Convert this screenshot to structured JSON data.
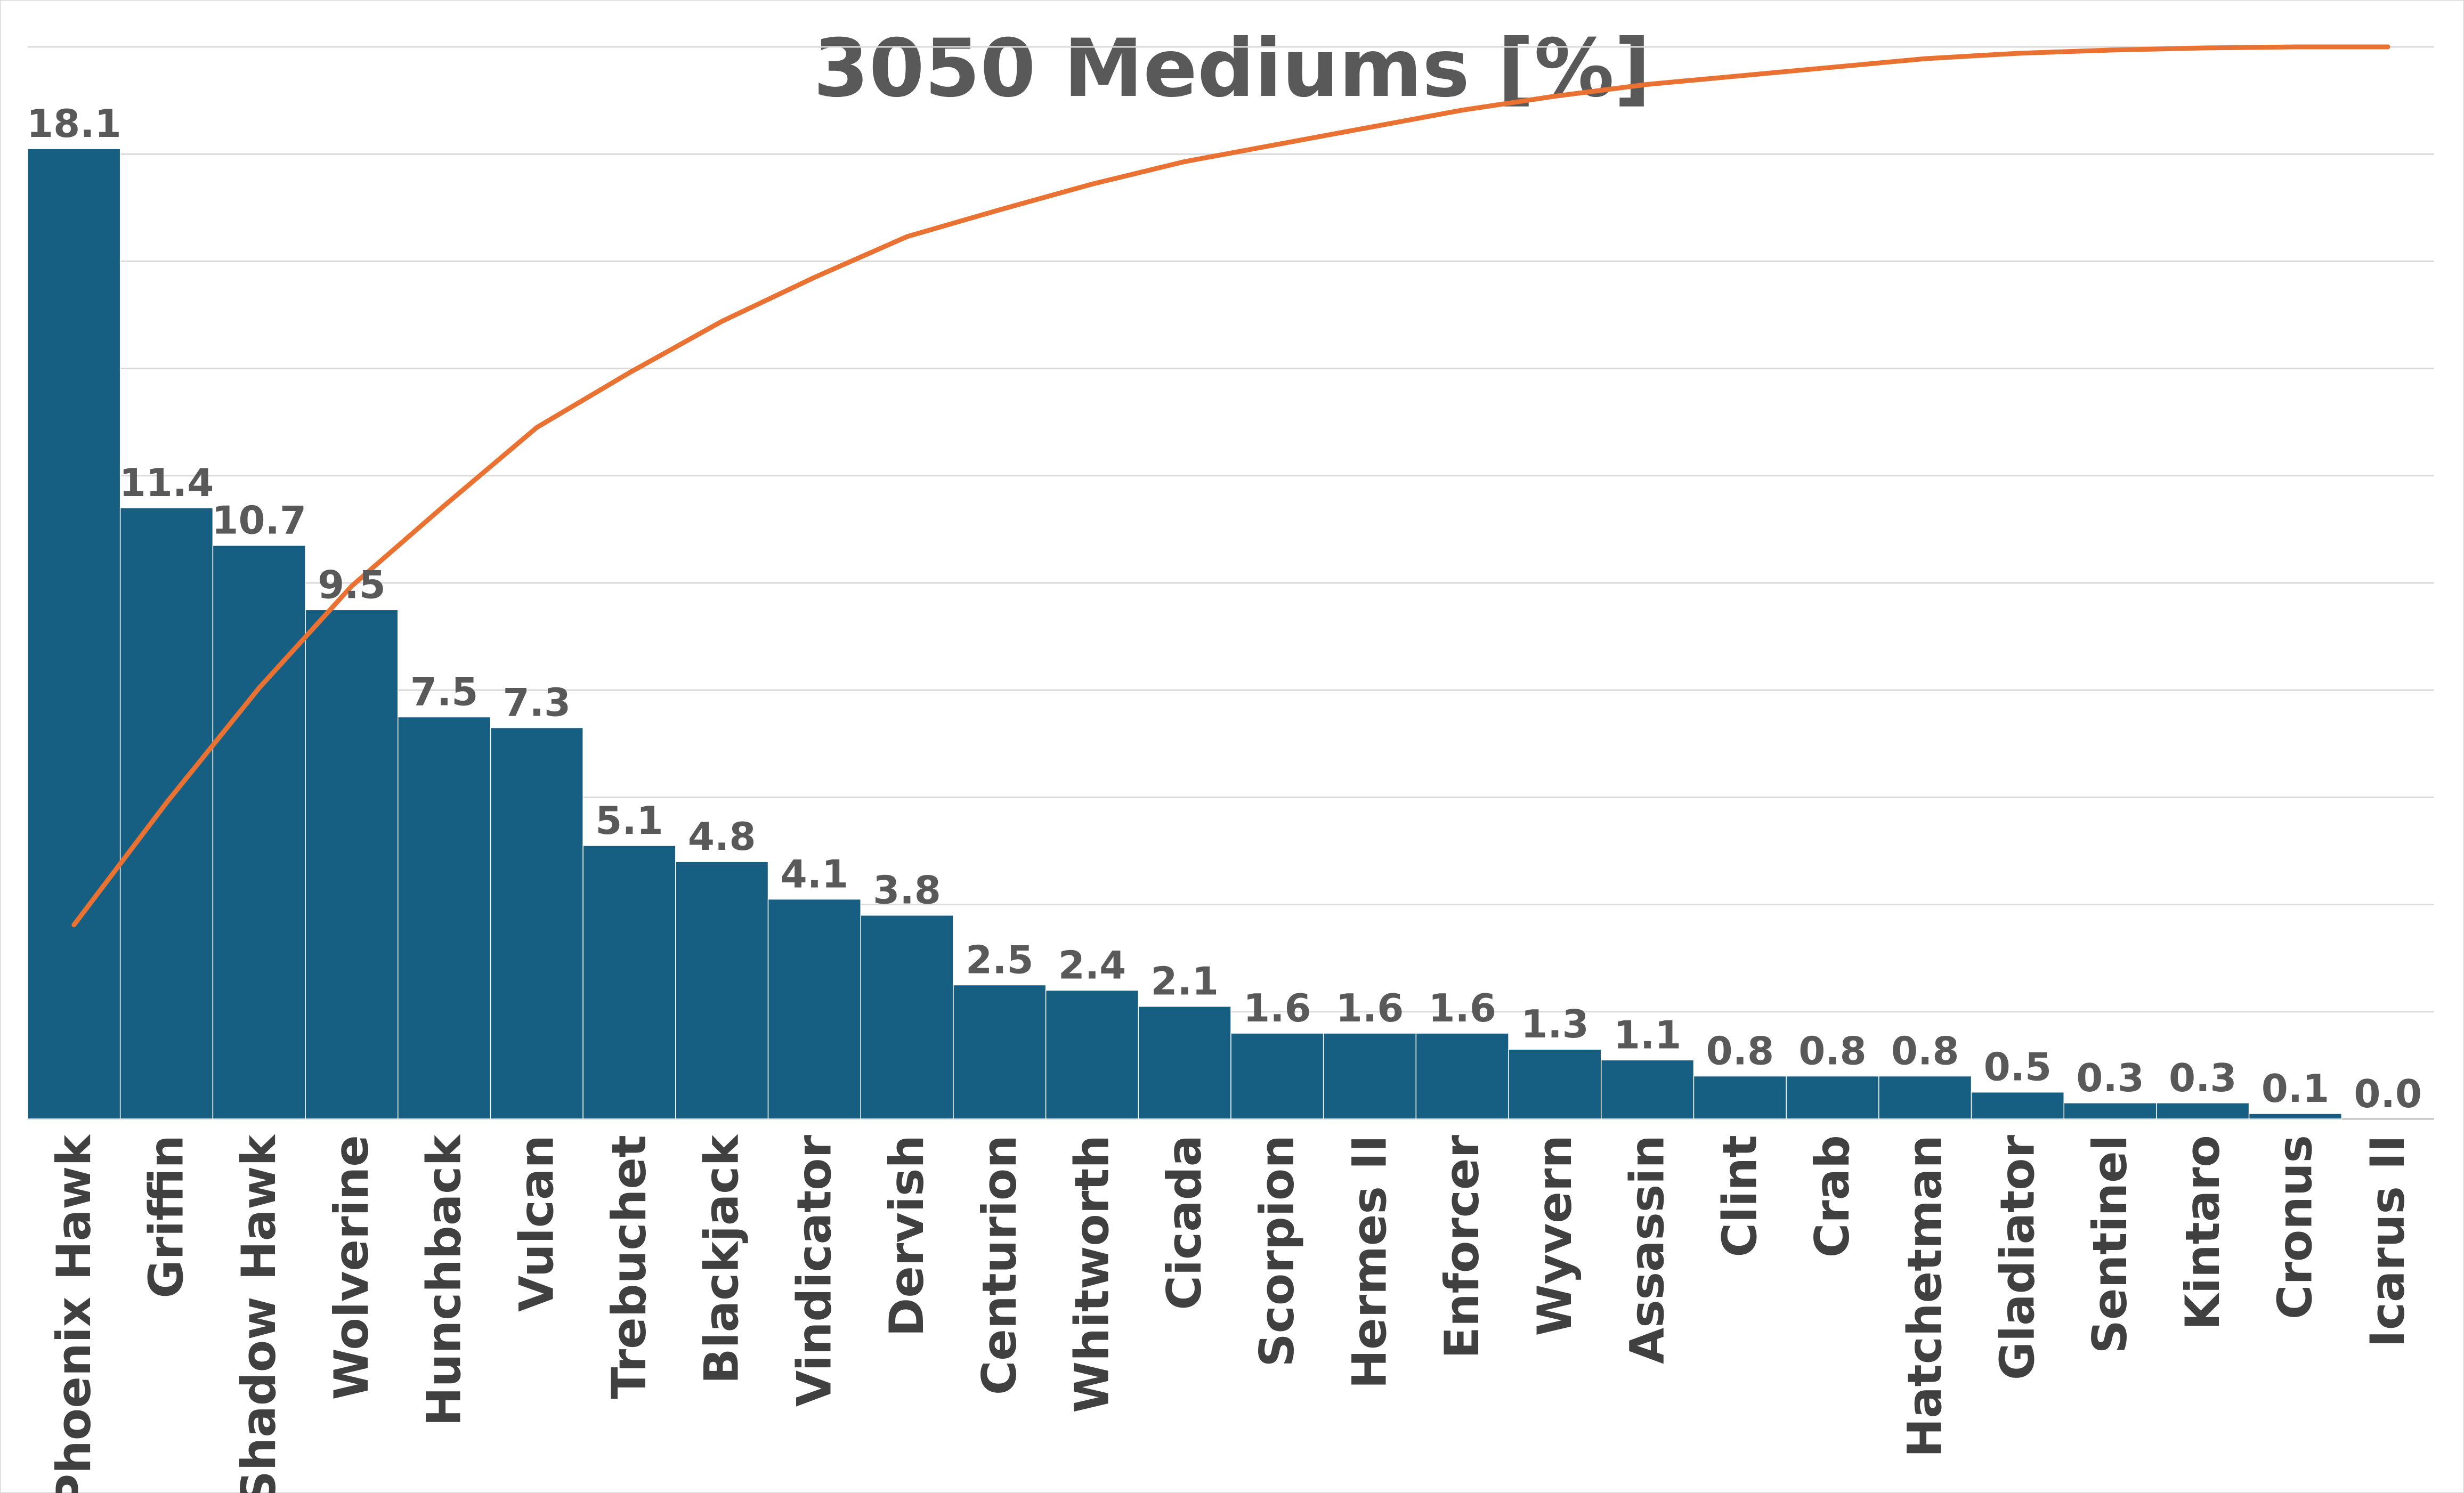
{
  "chart_data": {
    "type": "bar",
    "title": "3050 Mediums [%]",
    "xlabel": "",
    "ylabel": "",
    "ylim": [
      0,
      20
    ],
    "grid": true,
    "legend": "none",
    "categories": [
      "Phoenix Hawk",
      "Griffin",
      "Shadow Hawk",
      "Wolverine",
      "Hunchback",
      "Vulcan",
      "Trebuchet",
      "Blackjack",
      "Vindicator",
      "Dervish",
      "Centurion",
      "Whitworth",
      "Cicada",
      "Scorpion",
      "Hermes II",
      "Enforcer",
      "Wyvern",
      "Assassin",
      "Clint",
      "Crab",
      "Hatchetman",
      "Gladiator",
      "Sentinel",
      "Kintaro",
      "Cronus",
      "Icarus II"
    ],
    "series": [
      {
        "type": "bar",
        "values": [
          18.1,
          11.4,
          10.7,
          9.5,
          7.5,
          7.3,
          5.1,
          4.8,
          4.1,
          3.8,
          2.5,
          2.4,
          2.1,
          1.6,
          1.6,
          1.6,
          1.3,
          1.1,
          0.8,
          0.8,
          0.8,
          0.5,
          0.3,
          0.3,
          0.1,
          0.0
        ],
        "data_labels": [
          "18.1",
          "11.4",
          "10.7",
          "9.5",
          "7.5",
          "7.3",
          "5.1",
          "4.8",
          "4.1",
          "3.8",
          "2.5",
          "2.4",
          "2.1",
          "1.6",
          "1.6",
          "1.6",
          "1.3",
          "1.1",
          "0.8",
          "0.8",
          "0.8",
          "0.5",
          "0.3",
          "0.3",
          "0.1",
          "0.0"
        ]
      },
      {
        "type": "line",
        "cumulative_percent": [
          18.1,
          29.5,
          40.2,
          49.7,
          57.2,
          64.5,
          69.6,
          74.4,
          78.5,
          82.3,
          84.8,
          87.2,
          89.3,
          90.9,
          92.5,
          94.1,
          95.4,
          96.5,
          97.3,
          98.1,
          98.9,
          99.4,
          99.7,
          99.9,
          100.0,
          100.0
        ],
        "y_range": [
          0,
          100
        ]
      }
    ],
    "colors": {
      "bar": "#175F82",
      "bar_edge": "#ffffff",
      "line": "#E97132",
      "gridline": "#D9D9D9",
      "title_text": "#595959",
      "label_text": "#595959",
      "category_text": "#404040",
      "axis_line": "#BFBFBF"
    }
  }
}
